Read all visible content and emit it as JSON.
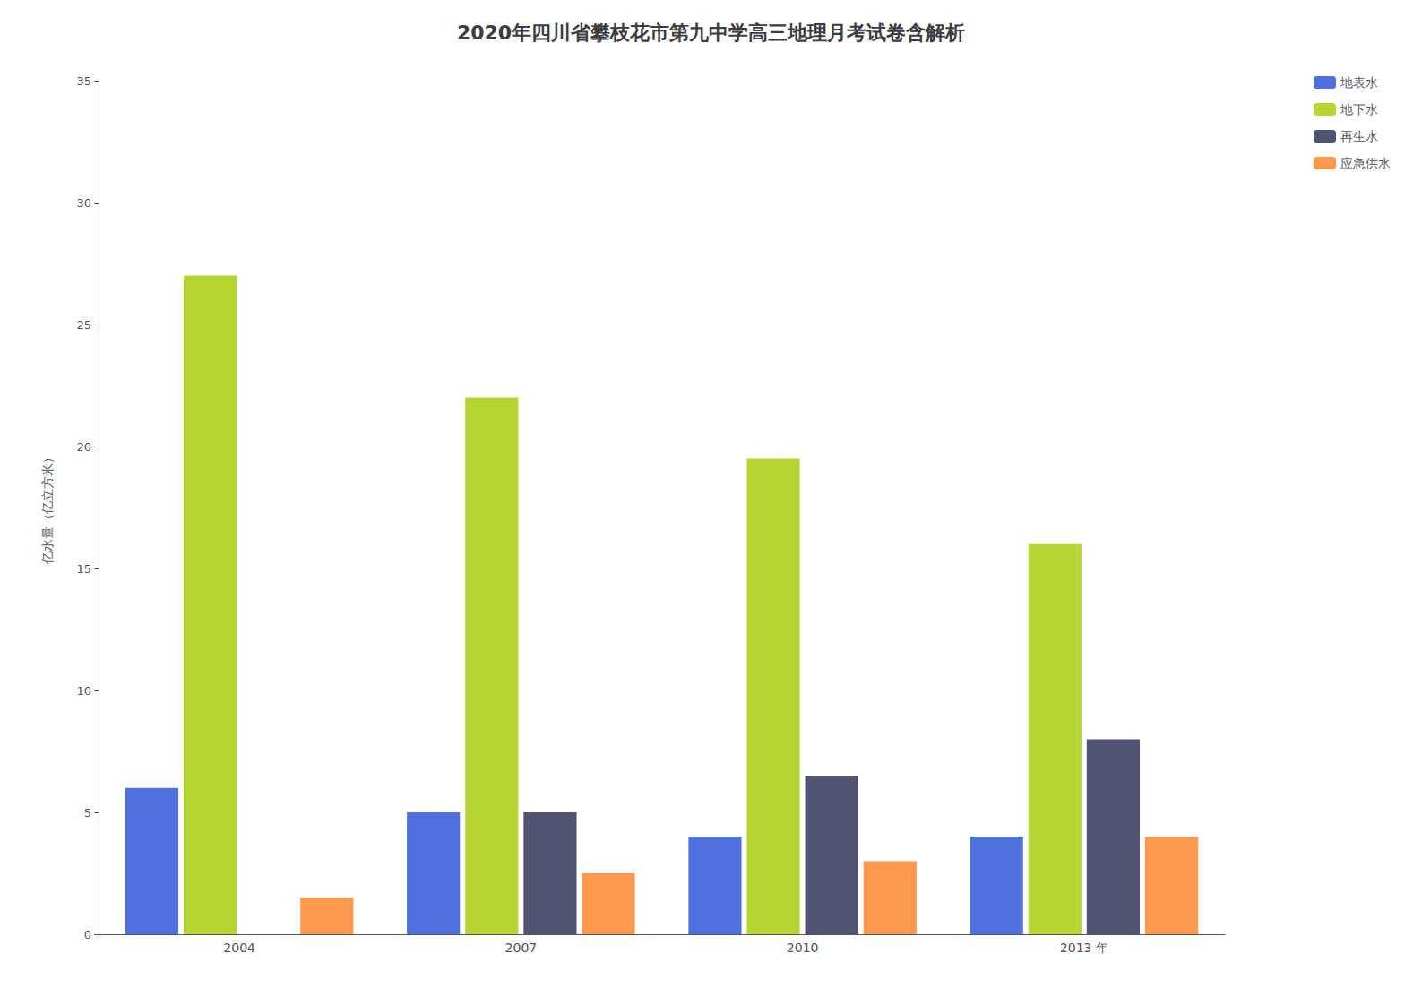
{
  "chart_data": {
    "type": "bar",
    "title": "2020年四川省攀枝花市第九中学高三地理月考试卷含解析",
    "categories": [
      "2004",
      "2007",
      "2010",
      "2013 年"
    ],
    "series": [
      {
        "name": "地表水",
        "values": [
          6.0,
          5.0,
          4.0,
          4.0
        ]
      },
      {
        "name": "地下水",
        "values": [
          27.0,
          22.0,
          19.5,
          16.0
        ]
      },
      {
        "name": "再生水",
        "values": [
          0.0,
          5.0,
          6.5,
          8.0
        ]
      },
      {
        "name": "应急供水",
        "values": [
          1.5,
          2.5,
          3.0,
          4.0
        ]
      }
    ],
    "y_label": "亿水量（亿立方米）",
    "ylim": [
      0,
      35
    ],
    "yticks": [
      0,
      5,
      10,
      15,
      20,
      25,
      30,
      35
    ],
    "grid": false,
    "legend": "upper right"
  }
}
